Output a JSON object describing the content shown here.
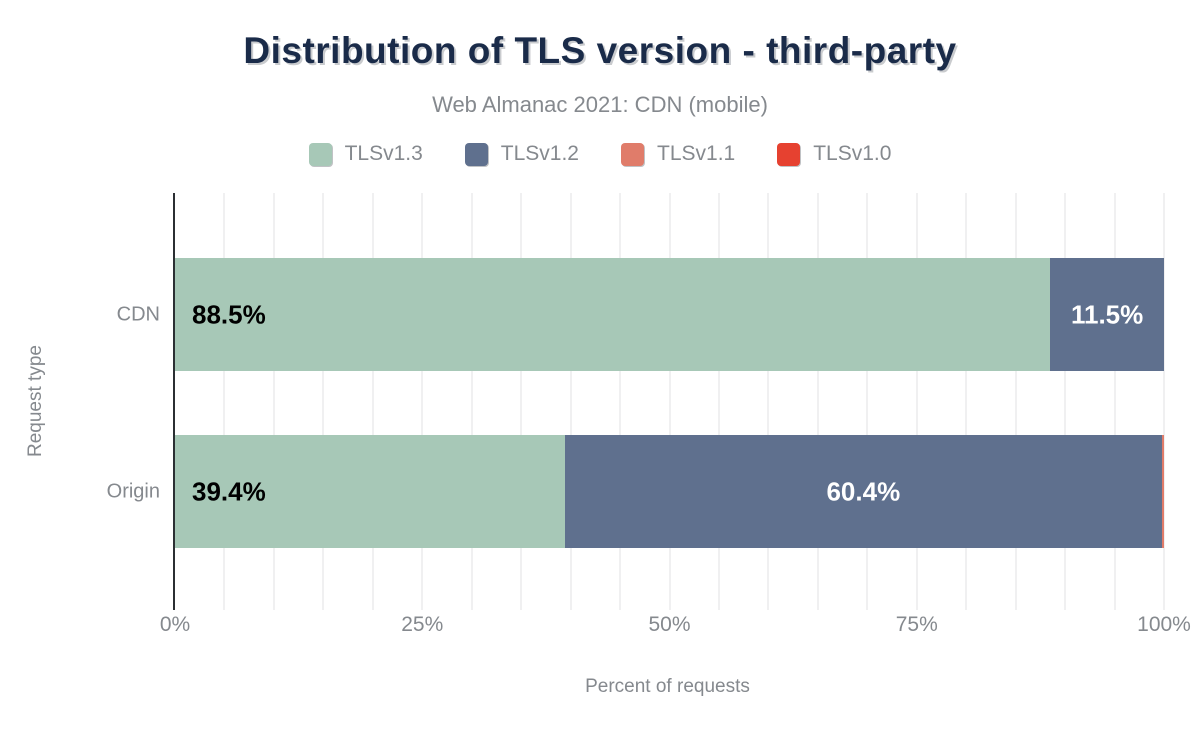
{
  "colors": {
    "title": "#1a2b49",
    "muted_text": "#85898e",
    "axis_line": "#2b2f33",
    "gridline": "#f0f0f1",
    "label_on_light": "#000000",
    "label_on_dark": "#ffffff",
    "background": "#ffffff"
  },
  "chart_data": {
    "type": "bar",
    "orientation": "horizontal",
    "stacked": true,
    "title": "Distribution of TLS version - third-party",
    "subtitle": "Web Almanac 2021: CDN (mobile)",
    "xlabel": "Percent of requests",
    "ylabel": "Request type",
    "categories": [
      "CDN",
      "Origin"
    ],
    "series": [
      {
        "name": "TLSv1.3",
        "color": "#a7c8b7",
        "values": [
          88.5,
          39.4
        ]
      },
      {
        "name": "TLSv1.2",
        "color": "#5f708e",
        "values": [
          11.5,
          60.4
        ]
      },
      {
        "name": "TLSv1.1",
        "color": "#e07c6a",
        "values": [
          0.0,
          0.2
        ]
      },
      {
        "name": "TLSv1.0",
        "color": "#e64130",
        "values": [
          0.0,
          0.0
        ]
      }
    ],
    "data_labels": [
      [
        "88.5%",
        "11.5%",
        "",
        ""
      ],
      [
        "39.4%",
        "60.4%",
        "",
        ""
      ]
    ],
    "xlim": [
      0,
      100
    ],
    "xticks": [
      {
        "value": 0,
        "label": "0%"
      },
      {
        "value": 25,
        "label": "25%"
      },
      {
        "value": 50,
        "label": "50%"
      },
      {
        "value": 75,
        "label": "75%"
      },
      {
        "value": 100,
        "label": "100%"
      }
    ],
    "grid": {
      "interval": 5,
      "axis": "x"
    },
    "legend_position": "top"
  }
}
